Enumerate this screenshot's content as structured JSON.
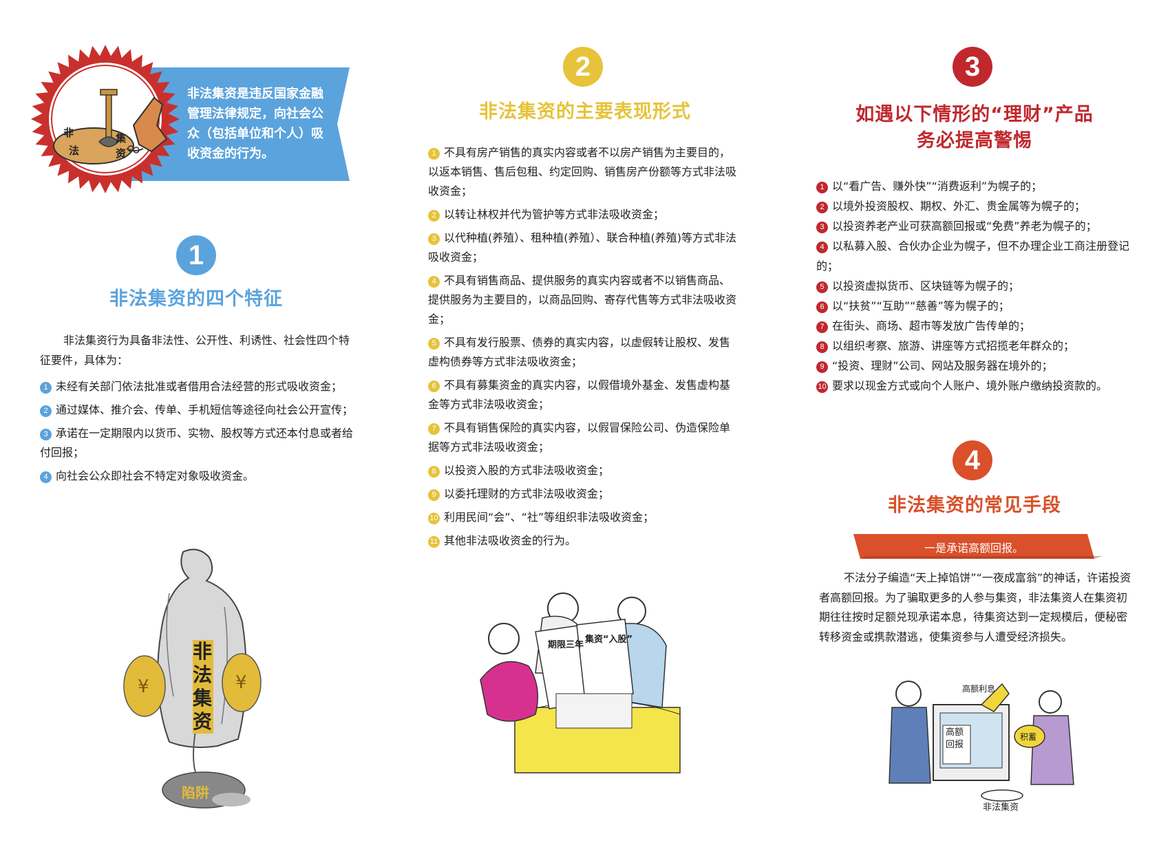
{
  "intro": {
    "emblem_labels": [
      "非",
      "法",
      "集",
      "资"
    ],
    "banner_text": "非法集资是违反国家金融管理法律规定，向社会公众（包括单位和个人）吸收资金的行为。"
  },
  "section1": {
    "number": "1",
    "title": "非法集资的四个特征",
    "intro": "非法集资行为具备非法性、公开性、利诱性、社会性四个特征要件，具体为：",
    "items": [
      {
        "num": "1",
        "text": "未经有关部门依法批准或者借用合法经营的形式吸收资金；"
      },
      {
        "num": "2",
        "text": "通过媒体、推介会、传单、手机短信等途径向社会公开宣传；"
      },
      {
        "num": "3",
        "text": "承诺在一定期限内以货币、实物、股权等方式还本付息或者给付回报；"
      },
      {
        "num": "4",
        "text": "向社会公众即社会不特定对象吸收资金。"
      }
    ],
    "illustration_text": {
      "vertical": "非法集资",
      "trap": "陷阱"
    }
  },
  "section2": {
    "number": "2",
    "title": "非法集资的主要表现形式",
    "items": [
      {
        "num": "1",
        "text": "不具有房产销售的真实内容或者不以房产销售为主要目的，以返本销售、售后包租、约定回购、销售房产份额等方式非法吸收资金；"
      },
      {
        "num": "2",
        "text": "以转让林权并代为管护等方式非法吸收资金；"
      },
      {
        "num": "3",
        "text": "以代种植(养殖）、租种植(养殖）、联合种植(养殖)等方式非法吸收资金；"
      },
      {
        "num": "4",
        "text": "不具有销售商品、提供服务的真实内容或者不以销售商品、提供服务为主要目的，以商品回购、寄存代售等方式非法吸收资金；"
      },
      {
        "num": "5",
        "text": "不具有发行股票、债券的真实内容，以虚假转让股权、发售虚构债券等方式非法吸收资金；"
      },
      {
        "num": "6",
        "text": "不具有募集资金的真实内容，以假借境外基金、发售虚构基金等方式非法吸收资金；"
      },
      {
        "num": "7",
        "text": "不具有销售保险的真实内容，以假冒保险公司、伪造保险单据等方式非法吸收资金；"
      },
      {
        "num": "8",
        "text": "以投资入股的方式非法吸收资金；"
      },
      {
        "num": "9",
        "text": "以委托理财的方式非法吸收资金；"
      },
      {
        "num": "10",
        "text": "利用民间“会”、“社”等组织非法吸收资金；"
      },
      {
        "num": "11",
        "text": "其他非法吸收资金的行为。"
      }
    ],
    "illustration_text": {
      "paper1": "期限三年",
      "paper2": "集资“入股”"
    }
  },
  "section3": {
    "number": "3",
    "title_line1": "如遇以下情形的“理财”产品",
    "title_line2": "务必提高警惕",
    "items": [
      {
        "num": "1",
        "text": "以“看广告、赚外快”“消费返利”为幌子的；"
      },
      {
        "num": "2",
        "text": "以境外投资股权、期权、外汇、贵金属等为幌子的；"
      },
      {
        "num": "3",
        "text": "以投资养老产业可获高额回报或“免费”养老为幌子的；"
      },
      {
        "num": "4",
        "text": "以私募入股、合伙办企业为幌子，但不办理企业工商注册登记的；"
      },
      {
        "num": "5",
        "text": "以投资虚拟货币、区块链等为幌子的；"
      },
      {
        "num": "6",
        "text": "以“扶贫”“互助”“慈善”等为幌子的；"
      },
      {
        "num": "7",
        "text": "在街头、商场、超市等发放广告传单的；"
      },
      {
        "num": "8",
        "text": "以组织考察、旅游、讲座等方式招揽老年群众的；"
      },
      {
        "num": "9",
        "text": "“投资、理财”公司、网站及服务器在境外的；"
      },
      {
        "num": "10",
        "text": "要求以现金方式或向个人账户、境外账户缴纳投资款的。"
      }
    ]
  },
  "section4": {
    "number": "4",
    "title": "非法集资的常见手段",
    "ribbon": "一是承诺高额回报。",
    "paragraph": "不法分子编造“天上掉馅饼”“一夜成富翁”的神话，许诺投资者高额回报。为了骗取更多的人参与集资，非法集资人在集资初期往往按时足额兑现承诺本息，待集资达到一定规模后，便秘密转移资金或携款潜逃，使集资参与人遭受经济损失。",
    "illustration_text": {
      "tag1": "高额利息",
      "tag2": "积蓄",
      "screen": "高额回报",
      "caption": "非法集资"
    }
  },
  "colors": {
    "blue": "#5ba3dd",
    "yellow": "#e6c33a",
    "red": "#c0282d",
    "orange": "#d9502a",
    "banner": "#5ba3dd"
  }
}
